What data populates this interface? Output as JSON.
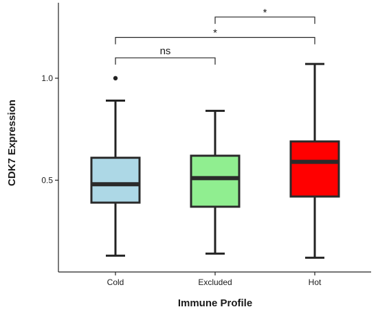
{
  "chart_data": {
    "type": "boxplot",
    "xlabel": "Immune Profile",
    "ylabel": "CDK7 Expression",
    "categories": [
      "Cold",
      "Excluded",
      "Hot"
    ],
    "ylim": [
      0.05,
      1.37
    ],
    "yticks": [
      0.5,
      1.0
    ],
    "ytick_labels": [
      "0.5",
      "1.0"
    ],
    "grid": false,
    "legend": "none",
    "boxes": [
      {
        "category": "Cold",
        "min": 0.13,
        "q1": 0.39,
        "median": 0.48,
        "q3": 0.61,
        "max": 0.89,
        "outliers": [
          1.0
        ],
        "color": "#add8e6"
      },
      {
        "category": "Excluded",
        "min": 0.14,
        "q1": 0.37,
        "median": 0.51,
        "q3": 0.62,
        "max": 0.84,
        "outliers": [],
        "color": "#90ee90"
      },
      {
        "category": "Hot",
        "min": 0.12,
        "q1": 0.42,
        "median": 0.59,
        "q3": 0.69,
        "max": 1.07,
        "outliers": [],
        "color": "#ff0000"
      }
    ],
    "comparisons": [
      {
        "from": "Cold",
        "to": "Excluded",
        "label": "ns",
        "y": 1.1
      },
      {
        "from": "Cold",
        "to": "Hot",
        "label": "*",
        "y": 1.2
      },
      {
        "from": "Excluded",
        "to": "Hot",
        "label": "*",
        "y": 1.3
      }
    ]
  }
}
